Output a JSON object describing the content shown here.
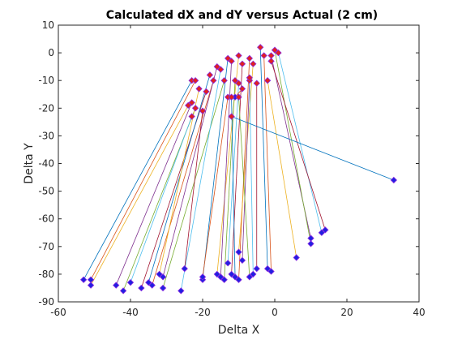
{
  "chart_data": {
    "type": "scatter",
    "title": "Calculated dX and dY versus Actual (2 cm)",
    "xlabel": "Delta X",
    "ylabel": "Delta Y",
    "xlim": [
      -60,
      40
    ],
    "ylim": [
      -90,
      10
    ],
    "xticks": [
      "-60",
      "-40",
      "-20",
      "0",
      "20",
      "40"
    ],
    "yticks": [
      "10",
      "0",
      "-10",
      "-20",
      "-30",
      "-40",
      "-50",
      "-60",
      "-70",
      "-80",
      "-90"
    ],
    "grid": false,
    "legend": "none",
    "colors": {
      "actual_marker": "#2020e0",
      "calculated_marker": "#e02020",
      "marker_edge": "#8a2be2",
      "axis": "#262626",
      "line_palette": [
        "#0072bd",
        "#d95319",
        "#edb120",
        "#7e2f8e",
        "#77ac30",
        "#4dbeee",
        "#a2142f"
      ]
    },
    "pairs": [
      {
        "actual": [
          -53,
          -82
        ],
        "calculated": [
          -23,
          -10
        ]
      },
      {
        "actual": [
          -51,
          -82
        ],
        "calculated": [
          -22,
          -10
        ]
      },
      {
        "actual": [
          -51,
          -84
        ],
        "calculated": [
          -24,
          -19
        ]
      },
      {
        "actual": [
          -44,
          -84
        ],
        "calculated": [
          -23,
          -18
        ]
      },
      {
        "actual": [
          -42,
          -86
        ],
        "calculated": [
          -22,
          -20
        ]
      },
      {
        "actual": [
          -40,
          -83
        ],
        "calculated": [
          -23,
          -23
        ]
      },
      {
        "actual": [
          -37,
          -85
        ],
        "calculated": [
          -19,
          -14
        ]
      },
      {
        "actual": [
          -35,
          -83
        ],
        "calculated": [
          -18,
          -8
        ]
      },
      {
        "actual": [
          -34,
          -84
        ],
        "calculated": [
          -17,
          -10
        ]
      },
      {
        "actual": [
          -32,
          -80
        ],
        "calculated": [
          -21,
          -13
        ]
      },
      {
        "actual": [
          -31,
          -81
        ],
        "calculated": [
          -16,
          -5
        ]
      },
      {
        "actual": [
          -31,
          -85
        ],
        "calculated": [
          -14,
          -10
        ]
      },
      {
        "actual": [
          -26,
          -86
        ],
        "calculated": [
          -15,
          -6
        ]
      },
      {
        "actual": [
          -25,
          -78
        ],
        "calculated": [
          -20,
          -21
        ]
      },
      {
        "actual": [
          -20,
          -82
        ],
        "calculated": [
          -13,
          -2
        ]
      },
      {
        "actual": [
          -20,
          -81
        ],
        "calculated": [
          -13,
          -16
        ]
      },
      {
        "actual": [
          -16,
          -80
        ],
        "calculated": [
          -10,
          -1
        ]
      },
      {
        "actual": [
          -15,
          -81
        ],
        "calculated": [
          -12,
          -3
        ]
      },
      {
        "actual": [
          -14,
          -82
        ],
        "calculated": [
          -11,
          -10
        ]
      },
      {
        "actual": [
          -13,
          -76
        ],
        "calculated": [
          -10,
          -11
        ]
      },
      {
        "actual": [
          -12,
          -80
        ],
        "calculated": [
          -9,
          -4
        ]
      },
      {
        "actual": [
          -11,
          -81
        ],
        "calculated": [
          -12,
          -16
        ]
      },
      {
        "actual": [
          -10,
          -82
        ],
        "calculated": [
          -7,
          -2
        ]
      },
      {
        "actual": [
          -10,
          -72
        ],
        "calculated": [
          -6,
          -4
        ]
      },
      {
        "actual": [
          -9,
          -75
        ],
        "calculated": [
          -7,
          -10
        ]
      },
      {
        "actual": [
          -7,
          -81
        ],
        "calculated": [
          -10,
          -16
        ]
      },
      {
        "actual": [
          -6,
          -80
        ],
        "calculated": [
          -7,
          -9
        ]
      },
      {
        "actual": [
          -5,
          -78
        ],
        "calculated": [
          -5,
          -11
        ]
      },
      {
        "actual": [
          -2,
          -78
        ],
        "calculated": [
          -4,
          2
        ]
      },
      {
        "actual": [
          -1,
          -79
        ],
        "calculated": [
          -3,
          -1
        ]
      },
      {
        "actual": [
          6,
          -74
        ],
        "calculated": [
          -2,
          -10
        ]
      },
      {
        "actual": [
          10,
          -67
        ],
        "calculated": [
          -1,
          -1
        ]
      },
      {
        "actual": [
          10,
          -69
        ],
        "calculated": [
          0,
          1
        ]
      },
      {
        "actual": [
          13,
          -65
        ],
        "calculated": [
          1,
          0
        ]
      },
      {
        "actual": [
          14,
          -64
        ],
        "calculated": [
          -1,
          -3
        ]
      },
      {
        "actual": [
          33,
          -46
        ],
        "calculated": [
          -12,
          -23
        ]
      },
      {
        "actual": [
          -11,
          -16
        ],
        "calculated": [
          -9,
          -13
        ]
      }
    ]
  }
}
